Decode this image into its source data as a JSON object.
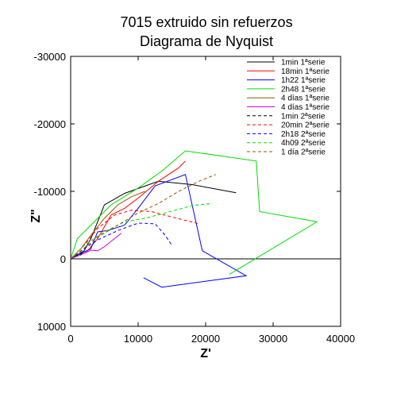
{
  "chart_data": {
    "type": "line",
    "title": "7015 extruido sin refuerzos",
    "subtitle": "Diagrama de Nyquist",
    "xlabel": "Z'",
    "ylabel": "Z\"",
    "xlim": [
      0,
      40000
    ],
    "ylim": [
      10000,
      -30000
    ],
    "y_inverted": true,
    "x_ticks": [
      0,
      10000,
      20000,
      30000,
      40000
    ],
    "y_ticks": [
      -30000,
      -20000,
      -10000,
      0,
      10000
    ],
    "x_tick_labels": [
      "0",
      "10000",
      "20000",
      "30000",
      "40000"
    ],
    "y_tick_labels": [
      "-30000",
      "-20000",
      "-10000",
      "0",
      "10000"
    ],
    "zero_line": true,
    "grid": false,
    "legend_position": "top-right",
    "series": [
      {
        "name": "1min 1ªserie",
        "color": "#000000",
        "dash": "solid",
        "x": [
          0,
          800,
          2000,
          3000,
          5000,
          8000,
          13000,
          18000,
          24500
        ],
        "y": [
          0,
          -500,
          -1200,
          -3000,
          -8000,
          -9700,
          -11500,
          -11000,
          -9800
        ]
      },
      {
        "name": "18min 1ªserie",
        "color": "#ff0000",
        "dash": "solid",
        "x": [
          0,
          1000,
          2500,
          4000,
          6000,
          8000,
          10000,
          13000,
          16000,
          17000
        ],
        "y": [
          0,
          -600,
          -1200,
          -3000,
          -6500,
          -7500,
          -9000,
          -11500,
          -13500,
          -14500
        ]
      },
      {
        "name": "1h22 1ªserie",
        "color": "#0000ff",
        "dash": "solid",
        "x": [
          0,
          1500,
          3000,
          4000,
          5500,
          8000,
          10000,
          12500,
          17000,
          19500,
          26000,
          13500,
          10800
        ],
        "y": [
          0,
          -800,
          -1500,
          -4000,
          -4200,
          -5000,
          -7500,
          -10800,
          -12500,
          -1200,
          2500,
          4200,
          2800
        ]
      },
      {
        "name": "2h48 1ªserie",
        "color": "#00dd00",
        "dash": "solid",
        "x": [
          0,
          1000,
          3000,
          6000,
          10000,
          13500,
          17000,
          27500,
          28000,
          36500,
          23500
        ],
        "y": [
          0,
          -3000,
          -5000,
          -8000,
          -10500,
          -13000,
          -16000,
          -14500,
          -7000,
          -5500,
          2300
        ]
      },
      {
        "name": "4 días 1ªserie",
        "color": "#a05000",
        "dash": "solid",
        "x": [
          0,
          1500,
          3000,
          5000,
          7000,
          9000,
          11000
        ],
        "y": [
          0,
          -1500,
          -3500,
          -6000,
          -8000,
          -9200,
          -10000
        ]
      },
      {
        "name": "4 días 1ªserie",
        "color": "#dd00dd",
        "dash": "solid",
        "x": [
          0,
          2000,
          3000,
          4000,
          5000,
          6000,
          7500
        ],
        "y": [
          0,
          -800,
          -1300,
          -1200,
          -1800,
          -2600,
          -3800
        ]
      },
      {
        "name": "1min 2ªserie",
        "color": "#000000",
        "dash": "dashed",
        "x": [
          0,
          700,
          1400,
          2000
        ],
        "y": [
          0,
          -600,
          -500,
          -1200
        ]
      },
      {
        "name": "20min 2ªserie",
        "color": "#ff0000",
        "dash": "dashed",
        "x": [
          0,
          2000,
          4000,
          6500,
          9000,
          12000,
          15000,
          19000
        ],
        "y": [
          0,
          -2000,
          -4500,
          -6500,
          -7200,
          -7000,
          -6200,
          -5200
        ]
      },
      {
        "name": "2h18 2ªserie",
        "color": "#0000ff",
        "dash": "dashed",
        "x": [
          0,
          2000,
          4000,
          7000,
          10000,
          12500,
          14000,
          15000
        ],
        "y": [
          0,
          -1500,
          -2800,
          -4200,
          -5300,
          -5200,
          -3500,
          -2000
        ]
      },
      {
        "name": "4h09 2ªserie",
        "color": "#00dd00",
        "dash": "dashed",
        "x": [
          0,
          2000,
          5000,
          8000,
          11000,
          14000,
          18000,
          21000
        ],
        "y": [
          0,
          -2000,
          -4000,
          -5500,
          -6000,
          -6800,
          -7900,
          -8200
        ]
      },
      {
        "name": "1 día 2ªserie",
        "color": "#a05000",
        "dash": "dashed",
        "x": [
          0,
          2000,
          4000,
          7000,
          10000,
          13000,
          16000,
          19000,
          21500
        ],
        "y": [
          0,
          -1600,
          -3200,
          -5000,
          -6800,
          -8200,
          -10000,
          -11500,
          -12500
        ]
      }
    ]
  }
}
